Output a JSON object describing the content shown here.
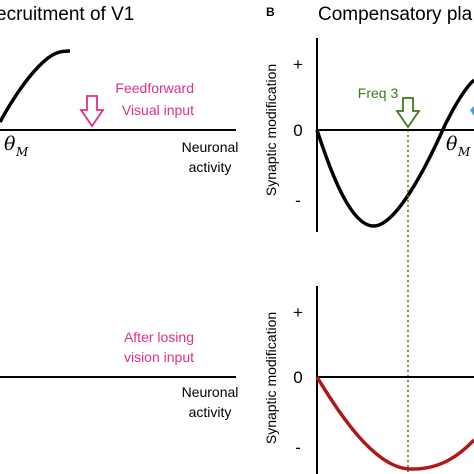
{
  "panel_a": {
    "title": "ecruitment of V1",
    "feedforward_line1": "Feedforward",
    "feedforward_line2": "Visual input",
    "theta_main": "θ",
    "theta_sub": "M",
    "xlabel_top_line1": "Neuronal",
    "xlabel_top_line2": "activity",
    "after_losing_line1": "After losing",
    "after_losing_line2": "vision input",
    "xlabel_bottom_line1": "Neuronal",
    "xlabel_bottom_line2": "activity"
  },
  "panel_b": {
    "letter": "B",
    "title": "Compensatory pla",
    "ylabel_top": "Synaptic modification",
    "ylabel_bottom": "Synaptic modification",
    "tick_plus": "+",
    "tick_zero": "0",
    "tick_minus": "-",
    "freq_label": "Freq 3",
    "theta_main": "θ",
    "theta_sub": "M"
  },
  "colors": {
    "magenta": "#e0308a",
    "green": "#3d7a1f",
    "dark_red": "#b01818",
    "black": "#000000",
    "cyan_cut": "#3aa0d8"
  }
}
